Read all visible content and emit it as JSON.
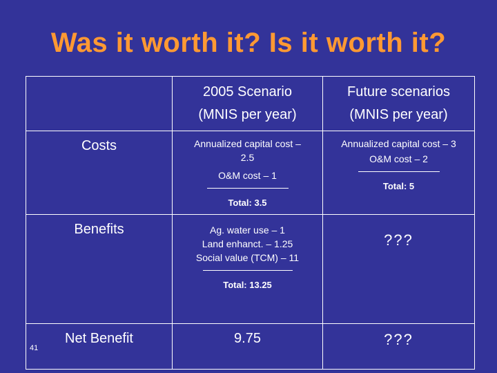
{
  "title": "Was it worth it? Is it worth it?",
  "table": {
    "headers": {
      "col1_line1": "2005 Scenario",
      "col1_line2": "(MNIS per year)",
      "col2_line1": "Future scenarios",
      "col2_line2": "(MNIS per year)"
    },
    "costs": {
      "label": "Costs",
      "c2005": {
        "line1": "Annualized capital cost –",
        "line2": "2.5",
        "line3": "O&M cost – 1",
        "total": "Total: 3.5"
      },
      "future": {
        "line1": "Annualized capital cost – 3",
        "line2": "O&M cost – 2",
        "total": "Total: 5"
      }
    },
    "benefits": {
      "label": "Benefits",
      "c2005": {
        "line1": "Ag. water use – 1",
        "line2": "Land enhanct. – 1.25",
        "line3": "Social value (TCM) – 11",
        "total": "Total: 13.25"
      },
      "future": "???"
    },
    "net_benefit": {
      "label": "Net Benefit",
      "c2005": "9.75",
      "future": "???"
    }
  },
  "slide_number": "41",
  "colors": {
    "background": "#333399",
    "title": "#ff9933",
    "text": "#ffffff"
  }
}
